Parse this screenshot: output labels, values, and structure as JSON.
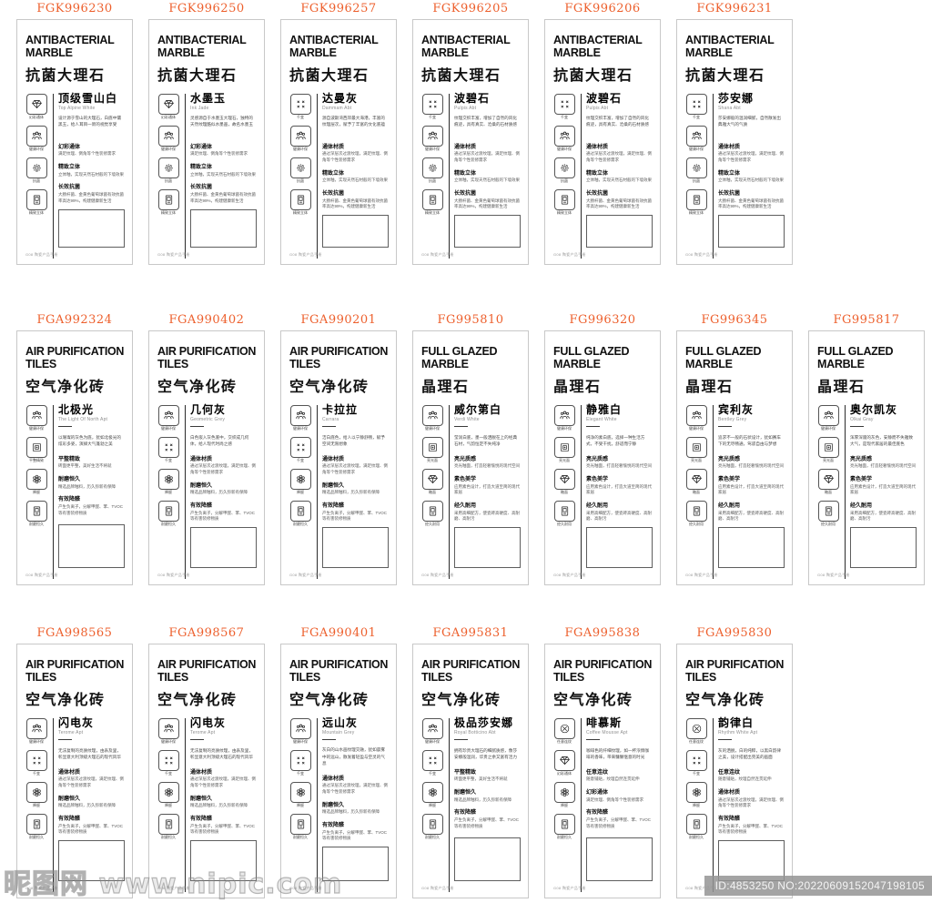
{
  "accent_color": "#ED5F2C",
  "footer_note": "G08 陶瓷产品手册",
  "watermark": {
    "site_name": "昵图网",
    "site_url": "www.nipic.com",
    "id_bar": "ID:4853250 NO:20220609152047198105"
  },
  "rows": [
    {
      "cards": [
        {
          "code": "FGK996230",
          "type": "anti",
          "category_en": "ANTIBACTERIAL MARBLE",
          "category_cn": "抗菌大理石",
          "name": "顶级雪山白",
          "name_en": "Top Alpine White",
          "intro": "设计源于雪山的大理石，白底中镶黑玉，给人耳目一新的视觉享受",
          "icons": [
            {
              "icon": "gem",
              "label": "幻彩通体"
            },
            {
              "icon": "people",
              "label": "健康环保"
            },
            {
              "icon": "gear",
              "label": "抗菌"
            },
            {
              "icon": "door",
              "label": "精致立体"
            }
          ],
          "sections": [
            {
              "h": "幻彩通体",
              "b": "满足纹理、倒角等个性装修需求"
            },
            {
              "h": "精致立体",
              "b": "立体釉，实现天然石材般的下墙效果"
            },
            {
              "h": "长效抗菌",
              "b": "大肠杆菌、金黄色葡萄球菌有效抗菌率高达99%，构建健康新生活"
            }
          ]
        },
        {
          "code": "FGK996250",
          "type": "anti",
          "category_en": "ANTIBACTERIAL MARBLE",
          "category_cn": "抗菌大理石",
          "name": "水墨玉",
          "name_en": "Ink Jade",
          "intro": "灵感源自于水墨玉大理石，独特的天然纹理酷似水墨画，故名水墨玉",
          "icons": [
            {
              "icon": "gem",
              "label": "幻彩通体"
            },
            {
              "icon": "people",
              "label": "健康环保"
            },
            {
              "icon": "gear",
              "label": "抗菌"
            },
            {
              "icon": "door",
              "label": "精致立体"
            }
          ],
          "sections": [
            {
              "h": "幻彩通体",
              "b": "满足纹理、倒角等个性装修需求"
            },
            {
              "h": "精致立体",
              "b": "立体釉，实现天然石材般的下墙效果"
            },
            {
              "h": "长效抗菌",
              "b": "大肠杆菌、金黄色葡萄球菌有效抗菌率高达99%，构建健康新生活"
            }
          ]
        },
        {
          "code": "FGK996257",
          "type": "anti",
          "category_en": "ANTIBACTERIAL MARBLE",
          "category_cn": "抗菌大理石",
          "name": "达曼灰",
          "name_en": "Dammam Abt",
          "intro": "源自波斯湾西岸最大海港，丰富的纹理层次，赋予了丰富的文化底蕴",
          "icons": [
            {
              "icon": "pattern",
              "label": "千变"
            },
            {
              "icon": "people",
              "label": "健康环保"
            },
            {
              "icon": "gear",
              "label": "抗菌"
            },
            {
              "icon": "door",
              "label": "精致立体"
            }
          ],
          "sections": [
            {
              "h": "通体材质",
              "b": "通过深层次过渡纹理，满足纹理、倒角等个性装修需求"
            },
            {
              "h": "精致立体",
              "b": "立体釉，实现天然石材般的下墙效果"
            },
            {
              "h": "长效抗菌",
              "b": "大肠杆菌、金黄色葡萄球菌有效抗菌率高达99%，构建健康新生活"
            }
          ]
        },
        {
          "code": "FGK996205",
          "type": "anti",
          "category_en": "ANTIBACTERIAL MARBLE",
          "category_cn": "抗菌大理石",
          "name": "波碧石",
          "name_en": "Pulpis Abt",
          "intro": "纹理交织丰富，增加了自然的风化痕迹，具有真实、沧桑的石材质感",
          "icons": [
            {
              "icon": "pattern",
              "label": "千变"
            },
            {
              "icon": "people",
              "label": "健康环保"
            },
            {
              "icon": "gear",
              "label": "抗菌"
            },
            {
              "icon": "door",
              "label": "精致立体"
            }
          ],
          "sections": [
            {
              "h": "通体材质",
              "b": "通过深层次过渡纹理，满足纹理、倒角等个性装修需求"
            },
            {
              "h": "精致立体",
              "b": "立体釉，实现天然石材般的下墙效果"
            },
            {
              "h": "长效抗菌",
              "b": "大肠杆菌、金黄色葡萄球菌有效抗菌率高达99%，构建健康新生活"
            }
          ]
        },
        {
          "code": "FGK996206",
          "type": "anti",
          "category_en": "ANTIBACTERIAL MARBLE",
          "category_cn": "抗菌大理石",
          "name": "波碧石",
          "name_en": "Pulpis Abt",
          "intro": "纹理交织丰富，增加了自然的风化痕迹，具有真实、沧桑的石材质感",
          "icons": [
            {
              "icon": "pattern",
              "label": "千变"
            },
            {
              "icon": "people",
              "label": "健康环保"
            },
            {
              "icon": "gear",
              "label": "抗菌"
            },
            {
              "icon": "door",
              "label": "精致立体"
            }
          ],
          "sections": [
            {
              "h": "通体材质",
              "b": "通过深层次过渡纹理，满足纹理、倒角等个性装修需求"
            },
            {
              "h": "精致立体",
              "b": "立体釉，实现天然石材般的下墙效果"
            },
            {
              "h": "长效抗菌",
              "b": "大肠杆菌、金黄色葡萄球菌有效抗菌率高达99%，构建健康新生活"
            }
          ]
        },
        {
          "code": "FGK996231",
          "type": "anti",
          "category_en": "ANTIBACTERIAL MARBLE",
          "category_cn": "抗菌大理石",
          "name": "莎安娜",
          "name_en": "Shana Abt",
          "intro": "莎安娜般的温润细腻，自然散发出典雅大气的气质",
          "icons": [
            {
              "icon": "pattern",
              "label": "千变"
            },
            {
              "icon": "people",
              "label": "健康环保"
            },
            {
              "icon": "gear",
              "label": "抗菌"
            },
            {
              "icon": "door",
              "label": "精致立体"
            }
          ],
          "sections": [
            {
              "h": "通体材质",
              "b": "通过深层次过渡纹理，满足纹理、倒角等个性装修需求"
            },
            {
              "h": "精致立体",
              "b": "立体釉，实现天然石材般的下墙效果"
            },
            {
              "h": "长效抗菌",
              "b": "大肠杆菌、金黄色葡萄球菌有效抗菌率高达99%，构建健康新生活"
            }
          ]
        }
      ]
    },
    {
      "cards": [
        {
          "code": "FGA992324",
          "type": "air",
          "category_en": "AIR PURIFICATION TILES",
          "category_cn": "空气净化砖",
          "name": "北极光",
          "name_en": "The Light Of North Apt",
          "intro": "以璀璨的灰色为底，犹如北极光的炫彩多姿，演绎大气蓬勃之美",
          "icons": [
            {
              "icon": "people",
              "label": "健康环保"
            },
            {
              "icon": "frame",
              "label": "平整精致"
            },
            {
              "icon": "flower",
              "label": "降醛"
            },
            {
              "icon": "door",
              "label": "耐磨恒久"
            }
          ],
          "sections": [
            {
              "h": "平整精致",
              "b": "砖面更平整，美好生活不将就"
            },
            {
              "h": "耐磨恒久",
              "b": "精选品牌釉料，历久弥新有保障"
            },
            {
              "h": "有效降醛",
              "b": "产生负离子，分解甲醛、苯、TVOC等有害装修物质"
            }
          ]
        },
        {
          "code": "FGA990402",
          "type": "air",
          "category_en": "AIR PURIFICATION TILES",
          "category_cn": "空气净化砖",
          "name": "几何灰",
          "name_en": "Geometric Grey",
          "intro": "白色嵌入灰色底中，交织成几何体，给人现代时尚之感",
          "icons": [
            {
              "icon": "people",
              "label": "健康环保"
            },
            {
              "icon": "pattern",
              "label": "千变"
            },
            {
              "icon": "flower",
              "label": "降醛"
            },
            {
              "icon": "door",
              "label": "耐磨恒久"
            }
          ],
          "sections": [
            {
              "h": "通体材质",
              "b": "通过深层次过渡纹理，满足纹理、倒角等个性装修需求"
            },
            {
              "h": "耐磨恒久",
              "b": "精选品牌釉料，历久弥新有保障"
            },
            {
              "h": "有效降醛",
              "b": "产生负离子，分解甲醛、苯、TVOC等有害装修物质"
            }
          ]
        },
        {
          "code": "FGA990201",
          "type": "air",
          "category_en": "AIR PURIFICATION TILES",
          "category_cn": "空气净化砖",
          "name": "卡拉拉",
          "name_en": "Carrara",
          "intro": "洁白底色，给人以宁静舒畅，赋予空间无限想象",
          "icons": [
            {
              "icon": "people",
              "label": "健康环保"
            },
            {
              "icon": "pattern",
              "label": "千变"
            },
            {
              "icon": "flower",
              "label": "降醛"
            },
            {
              "icon": "door",
              "label": "耐磨恒久"
            }
          ],
          "sections": [
            {
              "h": "通体材质",
              "b": "通过深层次过渡纹理，满足纹理、倒角等个性装修需求"
            },
            {
              "h": "耐磨恒久",
              "b": "精选品牌釉料，历久弥新有保障"
            },
            {
              "h": "有效降醛",
              "b": "产生负离子，分解甲醛、苯、TVOC等有害装修物质"
            }
          ]
        },
        {
          "code": "FG995810",
          "type": "glazed",
          "category_en": "FULL GLAZED MARBLE",
          "category_cn": "晶理石",
          "name": "威尔第白",
          "name_en": "Verdi White",
          "intro": "莹润白底，墨一般洒脱在上的经典石材，气韵恒定不失纯净",
          "icons": [
            {
              "icon": "people",
              "label": "健康环保"
            },
            {
              "icon": "frame",
              "label": "亮光面"
            },
            {
              "icon": "gem",
              "label": "釉面"
            },
            {
              "icon": "door",
              "label": "经久耐用"
            }
          ],
          "sections": [
            {
              "h": "亮光质感",
              "b": "亮光釉面，打造轻奢愉悦的现代空间"
            },
            {
              "h": "素色美学",
              "b": "应用素色设计，打造大道至简的现代家居"
            },
            {
              "h": "经久耐用",
              "b": "采用高细配方，使瓷砖高硬度、高耐磨、高耐污"
            }
          ]
        },
        {
          "code": "FG996320",
          "type": "glazed",
          "category_en": "FULL GLAZED MARBLE",
          "category_cn": "晶理石",
          "name": "静雅白",
          "name_en": "Elegant White",
          "intro": "纯净的素白底，选择一种生活方式，不受干扰，舒适而宁静",
          "icons": [
            {
              "icon": "people",
              "label": "健康环保"
            },
            {
              "icon": "frame",
              "label": "亮光面"
            },
            {
              "icon": "gem",
              "label": "釉面"
            },
            {
              "icon": "door",
              "label": "经久耐用"
            }
          ],
          "sections": [
            {
              "h": "亮光质感",
              "b": "亮光釉面，打造轻奢愉悦的现代空间"
            },
            {
              "h": "素色美学",
              "b": "应用素色设计，打造大道至简的现代家居"
            },
            {
              "h": "经久耐用",
              "b": "采用高细配方，使瓷砖高硬度、高耐磨、高耐污"
            }
          ]
        },
        {
          "code": "FG996345",
          "type": "glazed",
          "category_en": "FULL GLAZED MARBLE",
          "category_cn": "晶理石",
          "name": "宾利灰",
          "name_en": "Bentley Grey",
          "intro": "追求不一般的石状设计，犹如赛车下的无尽畅通，驾驭自由与梦想",
          "icons": [
            {
              "icon": "people",
              "label": "健康环保"
            },
            {
              "icon": "frame",
              "label": "亮光面"
            },
            {
              "icon": "gem",
              "label": "釉面"
            },
            {
              "icon": "door",
              "label": "经久耐用"
            }
          ],
          "sections": [
            {
              "h": "亮光质感",
              "b": "亮光釉面，打造轻奢愉悦的现代空间"
            },
            {
              "h": "素色美学",
              "b": "应用素色设计，打造大道至简的现代家居"
            },
            {
              "h": "经久耐用",
              "b": "采用高细配方，使瓷砖高硬度、高耐磨、高耐污"
            }
          ]
        },
        {
          "code": "FG995817",
          "type": "glazed",
          "category_en": "FULL GLAZED MARBLE",
          "category_cn": "晶理石",
          "name": "奥尔凯灰",
          "name_en": "Olkai Gray",
          "intro": "浑厚深邃的灰色，安静而不失雅致大气，是现代家居的最佳底色",
          "icons": [
            {
              "icon": "people",
              "label": "健康环保"
            },
            {
              "icon": "frame",
              "label": "亮光面"
            },
            {
              "icon": "gem",
              "label": "釉面"
            },
            {
              "icon": "door",
              "label": "经久耐用"
            }
          ],
          "sections": [
            {
              "h": "亮光质感",
              "b": "亮光釉面，打造轻奢愉悦的现代空间"
            },
            {
              "h": "素色美学",
              "b": "应用素色设计，打造大道至简的现代家居"
            },
            {
              "h": "经久耐用",
              "b": "采用高细配方，使瓷砖高硬度、高耐磨、高耐污"
            }
          ]
        }
      ]
    },
    {
      "cards": [
        {
          "code": "FGA998565",
          "type": "air",
          "category_en": "AIR PURIFICATION TILES",
          "category_cn": "空气净化砖",
          "name": "闪电灰",
          "name_en": "Terome Apt",
          "intro": "无法复制的亮质纹理，由表及里，彰显意大利顶级大理石的现代风华",
          "icons": [
            {
              "icon": "people",
              "label": "健康环保"
            },
            {
              "icon": "pattern",
              "label": "千变"
            },
            {
              "icon": "flower",
              "label": "降醛"
            },
            {
              "icon": "door",
              "label": "耐磨恒久"
            }
          ],
          "sections": [
            {
              "h": "通体材质",
              "b": "通过深层次过渡纹理，满足纹理、倒角等个性装修需求"
            },
            {
              "h": "耐磨恒久",
              "b": "精选品牌釉料，历久弥新有保障"
            },
            {
              "h": "有效降醛",
              "b": "产生负离子，分解甲醛、苯、TVOC等有害装修物质"
            }
          ]
        },
        {
          "code": "FGA998567",
          "type": "air",
          "category_en": "AIR PURIFICATION TILES",
          "category_cn": "空气净化砖",
          "name": "闪电灰",
          "name_en": "Terome Apt",
          "intro": "无法复制的亮质纹理，由表及里，彰显意大利顶级大理石的现代风华",
          "icons": [
            {
              "icon": "people",
              "label": "健康环保"
            },
            {
              "icon": "pattern",
              "label": "千变"
            },
            {
              "icon": "flower",
              "label": "降醛"
            },
            {
              "icon": "door",
              "label": "耐磨恒久"
            }
          ],
          "sections": [
            {
              "h": "通体材质",
              "b": "通过深层次过渡纹理，满足纹理、倒角等个性装修需求"
            },
            {
              "h": "耐磨恒久",
              "b": "精选品牌釉料，历久弥新有保障"
            },
            {
              "h": "有效降醛",
              "b": "产生负离子，分解甲醛、苯、TVOC等有害装修物质"
            }
          ]
        },
        {
          "code": "FGA990401",
          "type": "air",
          "category_en": "AIR PURIFICATION TILES",
          "category_cn": "空气净化砖",
          "name": "远山灰",
          "name_en": "Mountain Grey",
          "intro": "灰白的山水画纹理交融，犹如晨雾中的远山，散发着轻盈与空灵的气息",
          "icons": [
            {
              "icon": "people",
              "label": "健康环保"
            },
            {
              "icon": "pattern",
              "label": "千变"
            },
            {
              "icon": "flower",
              "label": "降醛"
            },
            {
              "icon": "door",
              "label": "耐磨恒久"
            }
          ],
          "sections": [
            {
              "h": "通体材质",
              "b": "通过深层次过渡纹理，满足纹理、倒角等个性装修需求"
            },
            {
              "h": "耐磨恒久",
              "b": "精选品牌釉料，历久弥新有保障"
            },
            {
              "h": "有效降醛",
              "b": "产生负离子，分解甲醛、苯、TVOC等有害装修物质"
            }
          ]
        },
        {
          "code": "FGA995831",
          "type": "air",
          "category_en": "AIR PURIFICATION TILES",
          "category_cn": "空气净化砖",
          "name": "极品莎安娜",
          "name_en": "Royal Botticino Abt",
          "intro": "拥有珍贵大理石的细腻质感，像莎安娜般温润，华贵之余又富有活力",
          "icons": [
            {
              "icon": "people",
              "label": "健康环保"
            },
            {
              "icon": "pattern",
              "label": "千变"
            },
            {
              "icon": "flower",
              "label": "降醛"
            },
            {
              "icon": "door",
              "label": "耐磨恒久"
            }
          ],
          "sections": [
            {
              "h": "平整精致",
              "b": "砖面更平整，美好生活不将就"
            },
            {
              "h": "耐磨恒久",
              "b": "精选品牌釉料，历久弥新有保障"
            },
            {
              "h": "有效降醛",
              "b": "产生负离子，分解甲醛、苯、TVOC等有害装修物质"
            }
          ]
        },
        {
          "code": "FGA995838",
          "type": "air",
          "category_en": "AIR PURIFICATION TILES",
          "category_cn": "空气净化砖",
          "name": "啡慕斯",
          "name_en": "Coffee Mousse Apt",
          "intro": "咖啡色的纤细纹理，如一杯浓情咖啡的香味，带来慵懒惬意的时光",
          "icons": [
            {
              "icon": "circlex",
              "label": "任意连纹"
            },
            {
              "icon": "gem",
              "label": "幻彩通体"
            },
            {
              "icon": "flower",
              "label": "降醛"
            },
            {
              "icon": "door",
              "label": "耐磨恒久"
            }
          ],
          "sections": [
            {
              "h": "任意连纹",
              "b": "随意铺贴，纹理自然连贯延伸"
            },
            {
              "h": "幻彩通体",
              "b": "满足纹理、倒角等个性装修需求"
            },
            {
              "h": "有效降醛",
              "b": "产生负离子，分解甲醛、苯、TVOC等有害装修物质"
            }
          ]
        },
        {
          "code": "FGA995830",
          "type": "air",
          "category_en": "AIR PURIFICATION TILES",
          "category_cn": "空气净化砖",
          "name": "韵律白",
          "name_en": "Rhythm White Apt",
          "intro": "灰的洒脱，白的纯粹，以黑白韵律之美，设计搭配出完美的画面",
          "icons": [
            {
              "icon": "circlex",
              "label": "任意连纹"
            },
            {
              "icon": "pattern",
              "label": "千变"
            },
            {
              "icon": "flower",
              "label": "降醛"
            },
            {
              "icon": "door",
              "label": "耐磨恒久"
            }
          ],
          "sections": [
            {
              "h": "任意连纹",
              "b": "随意铺贴，纹理自然连贯延伸"
            },
            {
              "h": "通体材质",
              "b": "通过深层次过渡纹理，满足纹理、倒角等个性装修需求"
            },
            {
              "h": "有效降醛",
              "b": "产生负离子，分解甲醛、苯、TVOC等有害装修物质"
            }
          ]
        }
      ]
    }
  ]
}
